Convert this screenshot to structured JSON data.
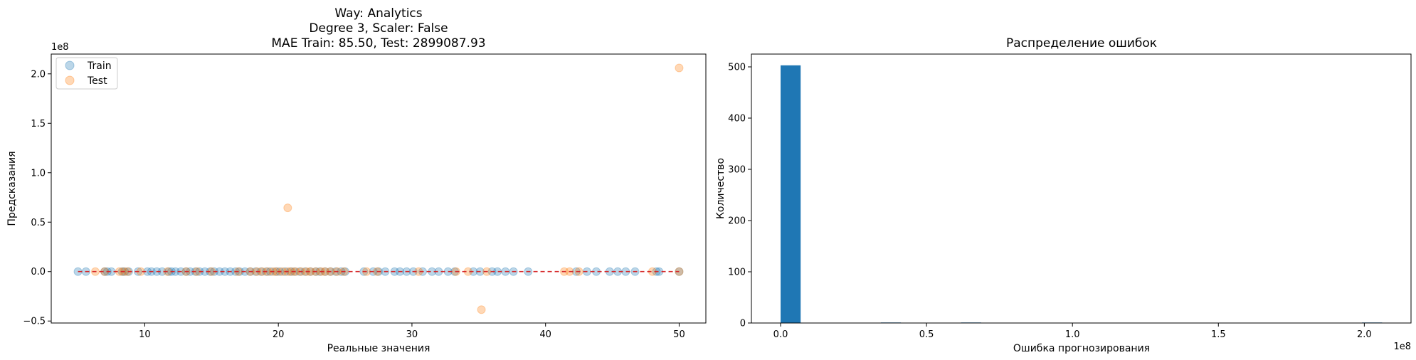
{
  "chart_data": [
    {
      "type": "scatter",
      "title_lines": [
        "Way: Analytics",
        "Degree 3, Scaler: False",
        "MAE Train: 85.50, Test: 2899087.93"
      ],
      "xlabel": "Реальные значения",
      "ylabel": "Предсказания",
      "offset_label": "1e8",
      "xlim": [
        3,
        52
      ],
      "ylim": [
        -0.52,
        2.2
      ],
      "xticks": [
        10,
        20,
        30,
        40,
        50
      ],
      "yticks": [
        -0.5,
        0.0,
        0.5,
        1.0,
        1.5,
        2.0
      ],
      "ytick_labels": [
        "−0.5",
        "0.0",
        "0.5",
        "1.0",
        "1.5",
        "2.0"
      ],
      "legend": [
        "Train",
        "Test"
      ],
      "legend_position": "upper-left",
      "colors": {
        "train": "#1f77b4",
        "test": "#ff7f0e",
        "reference": "#d62728"
      },
      "reference_line": {
        "x": [
          5,
          50
        ],
        "y": [
          0,
          0
        ],
        "style": "dashed"
      },
      "series": [
        {
          "name": "Train",
          "x": [
            5.0,
            5.6,
            7.0,
            7.2,
            7.5,
            8.3,
            8.5,
            8.8,
            9.5,
            10.2,
            10.5,
            10.9,
            11.3,
            11.8,
            12.0,
            12.3,
            12.7,
            13.1,
            13.4,
            13.8,
            14.1,
            14.5,
            14.9,
            15.2,
            15.6,
            16.0,
            16.4,
            16.8,
            17.1,
            17.5,
            17.9,
            18.3,
            18.7,
            19.1,
            19.4,
            19.8,
            20.1,
            20.5,
            20.9,
            21.2,
            21.6,
            22.0,
            22.4,
            22.8,
            23.1,
            23.5,
            23.9,
            24.3,
            24.7,
            25.0,
            26.4,
            27.1,
            27.5,
            28.0,
            28.7,
            29.1,
            29.6,
            30.1,
            30.8,
            31.5,
            32.0,
            32.7,
            33.2,
            34.6,
            35.1,
            36.0,
            36.4,
            37.0,
            37.6,
            38.7,
            42.3,
            43.1,
            43.8,
            44.8,
            45.4,
            46.0,
            46.7,
            48.3,
            48.5,
            50.0
          ],
          "y": [
            0,
            0,
            0,
            0,
            0,
            0,
            0,
            0,
            0,
            0,
            0,
            0,
            0,
            0,
            0,
            0,
            0,
            0,
            0,
            0,
            0,
            0,
            0,
            0,
            0,
            0,
            0,
            0,
            0,
            0,
            0,
            0,
            0,
            0,
            0,
            0,
            0,
            0,
            0,
            0,
            0,
            0,
            0,
            0,
            0,
            0,
            0,
            0,
            0,
            0,
            0,
            0,
            0,
            0,
            0,
            0,
            0,
            0,
            0,
            0,
            0,
            0,
            0,
            0,
            0,
            0,
            0,
            0,
            0,
            0,
            0,
            0,
            0,
            0,
            0,
            0,
            0,
            0,
            0,
            0
          ]
        },
        {
          "name": "Test",
          "x": [
            6.3,
            7.0,
            8.1,
            8.4,
            8.7,
            9.7,
            11.7,
            13.1,
            13.9,
            15.0,
            17.0,
            17.9,
            18.4,
            18.8,
            19.2,
            19.6,
            19.9,
            20.3,
            20.7,
            20.7,
            21.0,
            21.3,
            21.7,
            22.1,
            22.4,
            22.8,
            23.2,
            23.5,
            23.9,
            24.4,
            24.9,
            26.6,
            27.4,
            30.5,
            33.3,
            34.2,
            35.2,
            35.6,
            41.4,
            41.8,
            42.5,
            48.0,
            50.0,
            50.0
          ],
          "y": [
            0,
            0,
            0,
            0,
            0,
            0,
            0,
            0,
            0,
            0,
            0,
            0,
            0,
            0,
            0,
            0,
            0,
            0,
            0.645,
            0,
            0,
            0,
            0,
            0,
            0,
            0,
            0,
            0,
            0,
            0,
            0,
            0,
            0,
            0,
            0,
            0,
            -0.385,
            0,
            0,
            0,
            0,
            0,
            2.06,
            0
          ]
        }
      ]
    },
    {
      "type": "bar",
      "title": "Распределение ошибок",
      "xlabel": "Ошибка прогнозирования",
      "ylabel": "Количество",
      "offset_label": "1e8",
      "xlim": [
        -0.1,
        2.16
      ],
      "ylim": [
        0,
        525
      ],
      "xticks": [
        0.0,
        0.5,
        1.0,
        1.5,
        2.0
      ],
      "yticks": [
        0,
        100,
        200,
        300,
        400,
        500
      ],
      "bar_color": "#1f77b4",
      "bins": [
        {
          "start": 0.0,
          "end": 0.0687,
          "count": 503
        },
        {
          "start": 0.3435,
          "end": 0.4122,
          "count": 1
        },
        {
          "start": 0.6183,
          "end": 0.687,
          "count": 1
        },
        {
          "start": 1.992,
          "end": 2.061,
          "count": 1
        }
      ]
    }
  ]
}
